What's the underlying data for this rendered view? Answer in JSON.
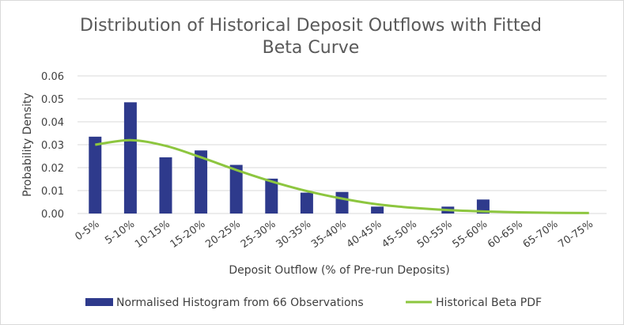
{
  "chart_data": {
    "type": "bar",
    "title": "Distribution of Historical Deposit Outflows with Fitted Beta Curve",
    "title_lines": [
      "Distribution of Historical Deposit Outflows with Fitted",
      "Beta Curve"
    ],
    "xlabel": "Deposit Outflow (% of Pre-run Deposits)",
    "ylabel": "Probability Density",
    "ylim": [
      0,
      0.06
    ],
    "yticks": [
      "0.00",
      "0.01",
      "0.02",
      "0.03",
      "0.04",
      "0.05",
      "0.06"
    ],
    "grid": true,
    "legend_position": "bottom",
    "categories": [
      "0-5%",
      "5-10%",
      "10-15%",
      "15-20%",
      "20-25%",
      "25-30%",
      "30-35%",
      "35-40%",
      "40-45%",
      "45-50%",
      "50-55%",
      "55-60%",
      "60-65%",
      "65-70%",
      "70-75%"
    ],
    "series": [
      {
        "name": "Normalised Histogram from 66 Observations",
        "kind": "bar",
        "color": "#2e3a8c",
        "values": [
          0.0335,
          0.0485,
          0.0245,
          0.0275,
          0.0212,
          0.0152,
          0.0091,
          0.0094,
          0.003,
          0,
          0.003,
          0.0061,
          0,
          0,
          0
        ]
      },
      {
        "name": "Historical Beta PDF",
        "kind": "line",
        "color": "#8dc63f",
        "values": [
          0.03,
          0.032,
          0.0295,
          0.0245,
          0.019,
          0.014,
          0.0098,
          0.0065,
          0.004,
          0.0025,
          0.0015,
          0.0009,
          0.0005,
          0.0003,
          0.0002
        ]
      }
    ]
  }
}
